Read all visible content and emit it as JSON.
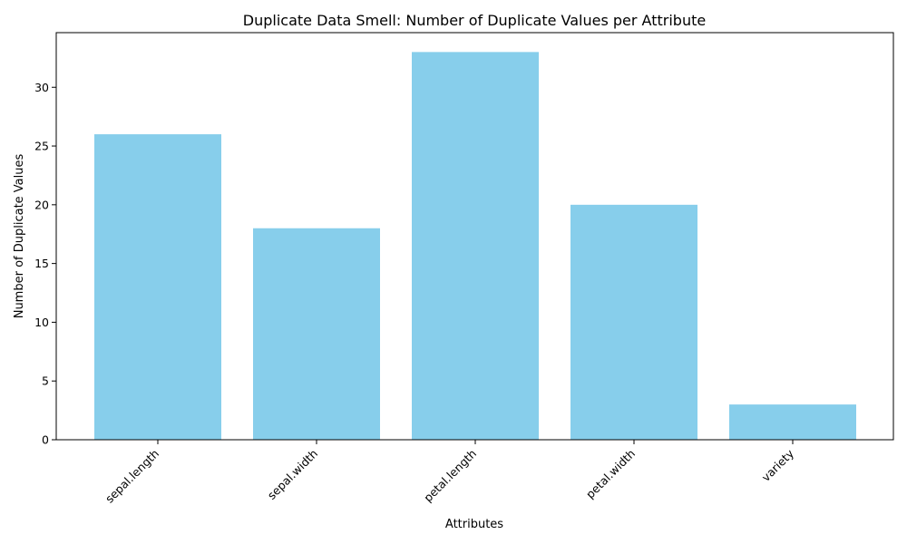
{
  "chart_data": {
    "type": "bar",
    "title": "Duplicate Data Smell: Number of Duplicate Values per Attribute",
    "xlabel": "Attributes",
    "ylabel": "Number of Duplicate Values",
    "categories": [
      "sepal.length",
      "sepal.width",
      "petal.length",
      "petal.width",
      "variety"
    ],
    "values": [
      26,
      18,
      33,
      20,
      3
    ],
    "ylim": [
      0,
      34.65
    ],
    "yticks": [
      0,
      5,
      10,
      15,
      20,
      25,
      30
    ],
    "bar_color": "#87ceeb",
    "grid": false,
    "legend": "none"
  }
}
